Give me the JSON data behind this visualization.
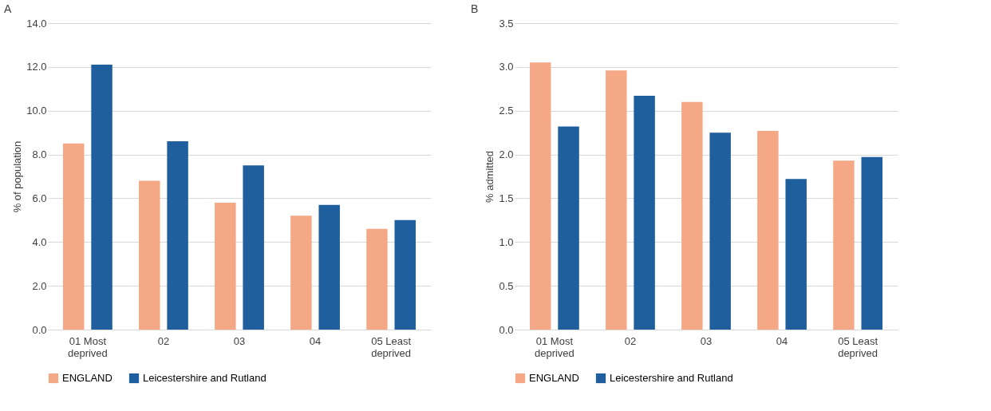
{
  "chart_data": [
    {
      "type": "bar",
      "title": "A",
      "ylabel": "% of population",
      "categories": [
        "01 Most deprived",
        "02",
        "03",
        "04",
        "05 Least deprived"
      ],
      "ylim": [
        0,
        14
      ],
      "yticks": [
        {
          "value": 0,
          "label": "0.0"
        },
        {
          "value": 2,
          "label": "2.0"
        },
        {
          "value": 4,
          "label": "4.0"
        },
        {
          "value": 6,
          "label": "6.0"
        },
        {
          "value": 8,
          "label": "8.0"
        },
        {
          "value": 10,
          "label": "10.0"
        },
        {
          "value": 12,
          "label": "12.0"
        },
        {
          "value": 14,
          "label": "14.0"
        }
      ],
      "grid": "y",
      "legend": "bottom",
      "series": [
        {
          "name": "ENGLAND",
          "color": "#f4a886",
          "values": [
            8.5,
            6.8,
            5.8,
            5.2,
            4.6
          ]
        },
        {
          "name": "Leicestershire and Rutland",
          "color": "#1f5f9e",
          "values": [
            12.1,
            8.6,
            7.5,
            5.7,
            5.0
          ]
        }
      ]
    },
    {
      "type": "bar",
      "title": "B",
      "ylabel": "% admitted",
      "categories": [
        "01 Most deprived",
        "02",
        "03",
        "04",
        "05 Least deprived"
      ],
      "ylim": [
        0,
        3.5
      ],
      "yticks": [
        {
          "value": 0,
          "label": "0.0"
        },
        0.5,
        {
          "value": 1,
          "label": "1.0"
        },
        1.5,
        {
          "value": 2,
          "label": "2.0"
        },
        2.5,
        {
          "value": 3,
          "label": "3.0"
        },
        3.5
      ],
      "grid": "y",
      "legend": "bottom",
      "series": [
        {
          "name": "ENGLAND",
          "color": "#f4a886",
          "values": [
            3.05,
            2.96,
            2.6,
            2.27,
            1.93
          ]
        },
        {
          "name": "Leicestershire and Rutland",
          "color": "#1f5f9e",
          "values": [
            2.32,
            2.67,
            2.25,
            1.72,
            1.97
          ]
        }
      ]
    }
  ]
}
